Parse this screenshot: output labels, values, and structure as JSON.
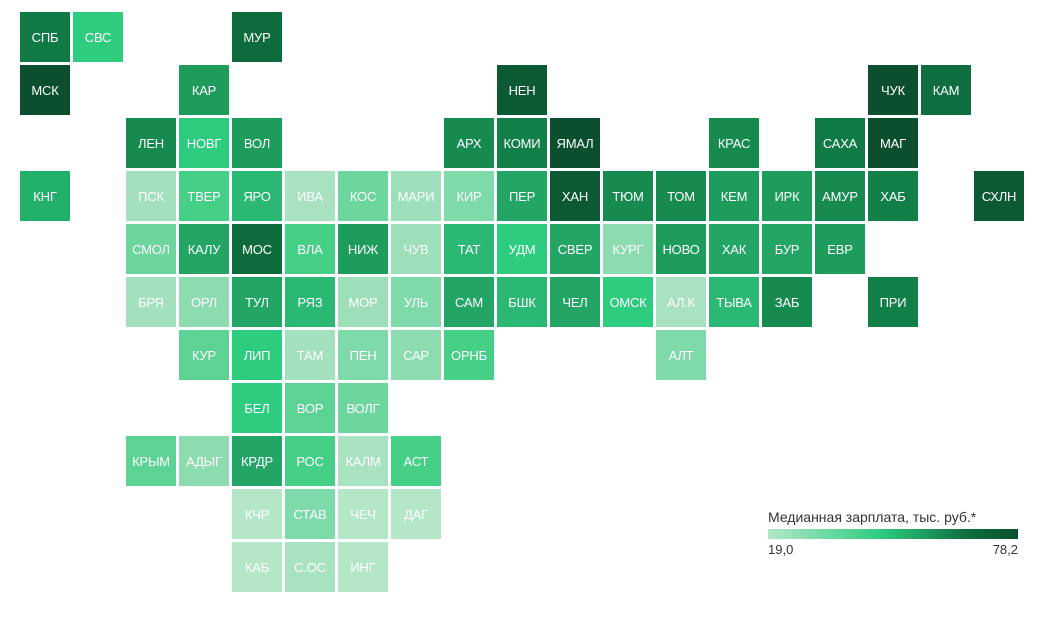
{
  "legend": {
    "title": "Медианная зарплата, тыс. руб.*",
    "min_label": "19,0",
    "max_label": "78,2",
    "colors": [
      "#b3e7c8",
      "#2ecc7e",
      "#0f6e3f",
      "#0b4f2e"
    ]
  },
  "regions": [
    {
      "label": "СПБ",
      "row": 0,
      "col": 0,
      "color": "#107a45"
    },
    {
      "label": "СВС",
      "row": 0,
      "col": 1,
      "color": "#2ecc7e"
    },
    {
      "label": "МУР",
      "row": 0,
      "col": 4,
      "color": "#0e6b3c"
    },
    {
      "label": "МСК",
      "row": 1,
      "col": 0,
      "color": "#0b4f2e"
    },
    {
      "label": "КАР",
      "row": 1,
      "col": 3,
      "color": "#1e9c5c"
    },
    {
      "label": "НЕН",
      "row": 1,
      "col": 9,
      "color": "#0b5a33"
    },
    {
      "label": "ЧУК",
      "row": 1,
      "col": 16,
      "color": "#0b4f2e"
    },
    {
      "label": "КАМ",
      "row": 1,
      "col": 17,
      "color": "#0f6e3f"
    },
    {
      "label": "ЛЕН",
      "row": 2,
      "col": 2,
      "color": "#168a4f"
    },
    {
      "label": "НОВГ",
      "row": 2,
      "col": 3,
      "color": "#2ecc7e"
    },
    {
      "label": "ВОЛ",
      "row": 2,
      "col": 4,
      "color": "#1e9c5c"
    },
    {
      "label": "АРХ",
      "row": 2,
      "col": 8,
      "color": "#168a4f"
    },
    {
      "label": "КОМИ",
      "row": 2,
      "col": 9,
      "color": "#137f48"
    },
    {
      "label": "ЯМАЛ",
      "row": 2,
      "col": 10,
      "color": "#0b4f2e"
    },
    {
      "label": "КРАС",
      "row": 2,
      "col": 13,
      "color": "#168a4f"
    },
    {
      "label": "САХА",
      "row": 2,
      "col": 15,
      "color": "#107a45"
    },
    {
      "label": "МАГ",
      "row": 2,
      "col": 16,
      "color": "#0b4f2e"
    },
    {
      "label": "КНГ",
      "row": 3,
      "col": 0,
      "color": "#22b06a"
    },
    {
      "label": "ПСК",
      "row": 3,
      "col": 2,
      "color": "#a3e0bd"
    },
    {
      "label": "ТВЕР",
      "row": 3,
      "col": 3,
      "color": "#46cf86"
    },
    {
      "label": "ЯРО",
      "row": 3,
      "col": 4,
      "color": "#2ab874"
    },
    {
      "label": "ИВА",
      "row": 3,
      "col": 5,
      "color": "#a8e2c1"
    },
    {
      "label": "КОС",
      "row": 3,
      "col": 6,
      "color": "#6dd69f"
    },
    {
      "label": "МАРИ",
      "row": 3,
      "col": 7,
      "color": "#9ddfb9"
    },
    {
      "label": "КИР",
      "row": 3,
      "col": 8,
      "color": "#7fdaa9"
    },
    {
      "label": "ПЕР",
      "row": 3,
      "col": 9,
      "color": "#22a565"
    },
    {
      "label": "ХАН",
      "row": 3,
      "col": 10,
      "color": "#0b5a33"
    },
    {
      "label": "ТЮМ",
      "row": 3,
      "col": 11,
      "color": "#168a4f"
    },
    {
      "label": "ТОМ",
      "row": 3,
      "col": 12,
      "color": "#168a4f"
    },
    {
      "label": "КЕМ",
      "row": 3,
      "col": 13,
      "color": "#1e9c5c"
    },
    {
      "label": "ИРК",
      "row": 3,
      "col": 14,
      "color": "#1e9c5c"
    },
    {
      "label": "АМУР",
      "row": 3,
      "col": 15,
      "color": "#168a4f"
    },
    {
      "label": "ХАБ",
      "row": 3,
      "col": 16,
      "color": "#137f48"
    },
    {
      "label": "СХЛН",
      "row": 3,
      "col": 18,
      "color": "#0b5a33"
    },
    {
      "label": "СМОЛ",
      "row": 4,
      "col": 2,
      "color": "#6dd69f"
    },
    {
      "label": "КАЛУ",
      "row": 4,
      "col": 3,
      "color": "#22a565"
    },
    {
      "label": "МОС",
      "row": 4,
      "col": 4,
      "color": "#0e6b3c"
    },
    {
      "label": "ВЛА",
      "row": 4,
      "col": 5,
      "color": "#46cf86"
    },
    {
      "label": "НИЖ",
      "row": 4,
      "col": 6,
      "color": "#1e9c5c"
    },
    {
      "label": "ЧУВ",
      "row": 4,
      "col": 7,
      "color": "#9ddfb9"
    },
    {
      "label": "ТАТ",
      "row": 4,
      "col": 8,
      "color": "#2ab874"
    },
    {
      "label": "УДМ",
      "row": 4,
      "col": 9,
      "color": "#2ecc7e"
    },
    {
      "label": "СВЕР",
      "row": 4,
      "col": 10,
      "color": "#22a565"
    },
    {
      "label": "КУРГ",
      "row": 4,
      "col": 11,
      "color": "#8ddcb0"
    },
    {
      "label": "НОВО",
      "row": 4,
      "col": 12,
      "color": "#1e9c5c"
    },
    {
      "label": "ХАК",
      "row": 4,
      "col": 13,
      "color": "#22a565"
    },
    {
      "label": "БУР",
      "row": 4,
      "col": 14,
      "color": "#22a565"
    },
    {
      "label": "ЕВР",
      "row": 4,
      "col": 15,
      "color": "#1e9c5c"
    },
    {
      "label": "БРЯ",
      "row": 5,
      "col": 2,
      "color": "#a3e0bd"
    },
    {
      "label": "ОРЛ",
      "row": 5,
      "col": 3,
      "color": "#8ddcb0"
    },
    {
      "label": "ТУЛ",
      "row": 5,
      "col": 4,
      "color": "#22a565"
    },
    {
      "label": "РЯЗ",
      "row": 5,
      "col": 5,
      "color": "#2ab874"
    },
    {
      "label": "МОР",
      "row": 5,
      "col": 6,
      "color": "#9ddfb9"
    },
    {
      "label": "УЛЬ",
      "row": 5,
      "col": 7,
      "color": "#7fdaa9"
    },
    {
      "label": "САМ",
      "row": 5,
      "col": 8,
      "color": "#22a565"
    },
    {
      "label": "БШК",
      "row": 5,
      "col": 9,
      "color": "#2ab874"
    },
    {
      "label": "ЧЕЛ",
      "row": 5,
      "col": 10,
      "color": "#22a565"
    },
    {
      "label": "ОМСК",
      "row": 5,
      "col": 11,
      "color": "#2ecc7e"
    },
    {
      "label": "АЛ.К",
      "row": 5,
      "col": 12,
      "color": "#a8e2c1"
    },
    {
      "label": "ТЫВА",
      "row": 5,
      "col": 13,
      "color": "#2ab874"
    },
    {
      "label": "ЗАБ",
      "row": 5,
      "col": 14,
      "color": "#168a4f"
    },
    {
      "label": "ПРИ",
      "row": 5,
      "col": 16,
      "color": "#137f48"
    },
    {
      "label": "КУР",
      "row": 6,
      "col": 3,
      "color": "#5cd394"
    },
    {
      "label": "ЛИП",
      "row": 6,
      "col": 4,
      "color": "#2ecc7e"
    },
    {
      "label": "ТАМ",
      "row": 6,
      "col": 5,
      "color": "#a3e0bd"
    },
    {
      "label": "ПЕН",
      "row": 6,
      "col": 6,
      "color": "#7fdaa9"
    },
    {
      "label": "САР",
      "row": 6,
      "col": 7,
      "color": "#8ddcb0"
    },
    {
      "label": "ОРНБ",
      "row": 6,
      "col": 8,
      "color": "#46cf86"
    },
    {
      "label": "АЛТ",
      "row": 6,
      "col": 12,
      "color": "#7fdaa9"
    },
    {
      "label": "БЕЛ",
      "row": 7,
      "col": 4,
      "color": "#2ecc7e"
    },
    {
      "label": "ВОР",
      "row": 7,
      "col": 5,
      "color": "#5cd394"
    },
    {
      "label": "ВОЛГ",
      "row": 7,
      "col": 6,
      "color": "#6dd69f"
    },
    {
      "label": "КРЫМ",
      "row": 8,
      "col": 2,
      "color": "#5cd394"
    },
    {
      "label": "АДЫГ",
      "row": 8,
      "col": 3,
      "color": "#8ddcb0"
    },
    {
      "label": "КРДР",
      "row": 8,
      "col": 4,
      "color": "#22a565"
    },
    {
      "label": "РОС",
      "row": 8,
      "col": 5,
      "color": "#46cf86"
    },
    {
      "label": "КАЛМ",
      "row": 8,
      "col": 6,
      "color": "#a8e2c1"
    },
    {
      "label": "АСТ",
      "row": 8,
      "col": 7,
      "color": "#46cf86"
    },
    {
      "label": "КЧР",
      "row": 9,
      "col": 4,
      "color": "#b3e7c8"
    },
    {
      "label": "СТАВ",
      "row": 9,
      "col": 5,
      "color": "#7fdaa9"
    },
    {
      "label": "ЧЕЧ",
      "row": 9,
      "col": 6,
      "color": "#b3e7c8"
    },
    {
      "label": "ДАГ",
      "row": 9,
      "col": 7,
      "color": "#b3e7c8"
    },
    {
      "label": "КАБ",
      "row": 10,
      "col": 4,
      "color": "#b3e7c8"
    },
    {
      "label": "С.ОС",
      "row": 10,
      "col": 5,
      "color": "#a8e2c1"
    },
    {
      "label": "ИНГ",
      "row": 10,
      "col": 6,
      "color": "#b3e7c8"
    }
  ]
}
